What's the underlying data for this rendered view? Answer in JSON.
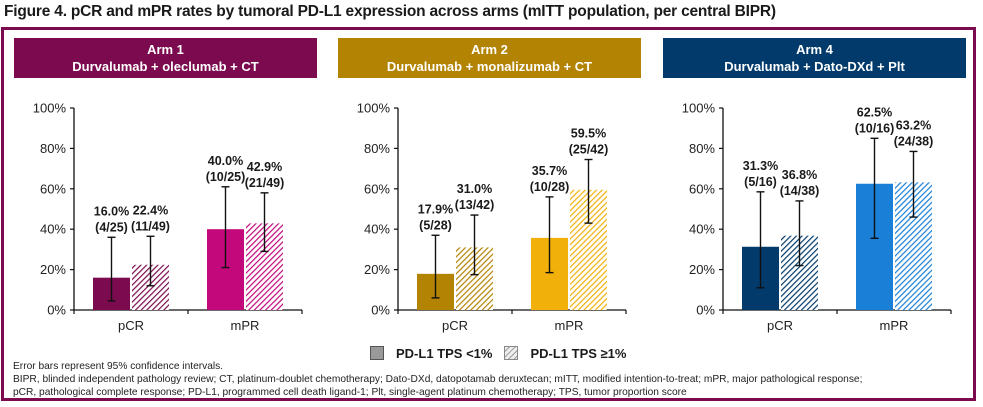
{
  "figure_title": "Figure 4. pCR and mPR rates by tumoral PD-L1 expression across arms (mITT population, per central BIPR)",
  "colors": {
    "frame": "#7b0a4e",
    "arm1_header": "#7b0a4e",
    "arm1_pcr": "#7b0a4e",
    "arm1_mpr": "#c2087a",
    "arm2_header": "#b38303",
    "arm2_pcr": "#b38303",
    "arm2_mpr": "#f2b00a",
    "arm4_header": "#023b6b",
    "arm4_pcr": "#023b6b",
    "arm4_mpr": "#1a7fd6"
  },
  "legend": {
    "items": [
      {
        "label": "PD-L1 TPS <1%",
        "style": "solid"
      },
      {
        "label": "PD-L1 TPS ≥1%",
        "style": "hatched"
      }
    ]
  },
  "notes": {
    "line1": "Error bars represent 95% confidence intervals.",
    "line2": "BIPR, blinded independent pathology review; CT, platinum-doublet chemotherapy; Dato-DXd, datopotamab deruxtecan; mITT, modified intention-to-treat; mPR, major pathological response;",
    "line3": "pCR, pathological complete response; PD-L1, programmed cell death ligand-1; Plt, single-agent platinum chemotherapy; TPS, tumor proportion score"
  },
  "chart_data": [
    {
      "type": "bar",
      "panel_title": "Arm 1",
      "panel_subtitle": "Durvalumab + oleclumab + CT",
      "categories": [
        "pCR",
        "mPR"
      ],
      "ylim": [
        0,
        100
      ],
      "yticks": [
        "0%",
        "20%",
        "40%",
        "60%",
        "80%",
        "100%"
      ],
      "series": [
        {
          "name": "PD-L1 TPS <1%",
          "values": [
            16.0,
            40.0
          ],
          "labels": [
            "16.0%",
            "40.0%"
          ],
          "counts": [
            "(4/25)",
            "(10/25)"
          ],
          "ci_low": [
            4.5,
            21
          ],
          "ci_high": [
            36,
            61
          ]
        },
        {
          "name": "PD-L1 TPS ≥1%",
          "values": [
            22.4,
            42.9
          ],
          "labels": [
            "22.4%",
            "42.9%"
          ],
          "counts": [
            "(11/49)",
            "(21/49)"
          ],
          "ci_low": [
            12,
            29
          ],
          "ci_high": [
            36.5,
            58
          ]
        }
      ]
    },
    {
      "type": "bar",
      "panel_title": "Arm 2",
      "panel_subtitle": "Durvalumab + monalizumab + CT",
      "categories": [
        "pCR",
        "mPR"
      ],
      "ylim": [
        0,
        100
      ],
      "yticks": [
        "0%",
        "20%",
        "40%",
        "60%",
        "80%",
        "100%"
      ],
      "series": [
        {
          "name": "PD-L1 TPS <1%",
          "values": [
            17.9,
            35.7
          ],
          "labels": [
            "17.9%",
            "35.7%"
          ],
          "counts": [
            "(5/28)",
            "(10/28)"
          ],
          "ci_low": [
            6,
            18.5
          ],
          "ci_high": [
            37,
            56
          ]
        },
        {
          "name": "PD-L1 TPS ≥1%",
          "values": [
            31.0,
            59.5
          ],
          "labels": [
            "31.0%",
            "59.5%"
          ],
          "counts": [
            "(13/42)",
            "(25/42)"
          ],
          "ci_low": [
            17.5,
            43
          ],
          "ci_high": [
            47,
            74.5
          ]
        }
      ]
    },
    {
      "type": "bar",
      "panel_title": "Arm 4",
      "panel_subtitle": "Durvalumab + Dato-DXd + Plt",
      "categories": [
        "pCR",
        "mPR"
      ],
      "ylim": [
        0,
        100
      ],
      "yticks": [
        "0%",
        "20%",
        "40%",
        "60%",
        "80%",
        "100%"
      ],
      "series": [
        {
          "name": "PD-L1 TPS <1%",
          "values": [
            31.3,
            62.5
          ],
          "labels": [
            "31.3%",
            "62.5%"
          ],
          "counts": [
            "(5/16)",
            "(10/16)"
          ],
          "ci_low": [
            11,
            35.5
          ],
          "ci_high": [
            58.5,
            85
          ]
        },
        {
          "name": "PD-L1 TPS ≥1%",
          "values": [
            36.8,
            63.2
          ],
          "labels": [
            "36.8%",
            "63.2%"
          ],
          "counts": [
            "(14/38)",
            "(24/38)"
          ],
          "ci_low": [
            22,
            46
          ],
          "ci_high": [
            54,
            78.5
          ]
        }
      ]
    }
  ]
}
